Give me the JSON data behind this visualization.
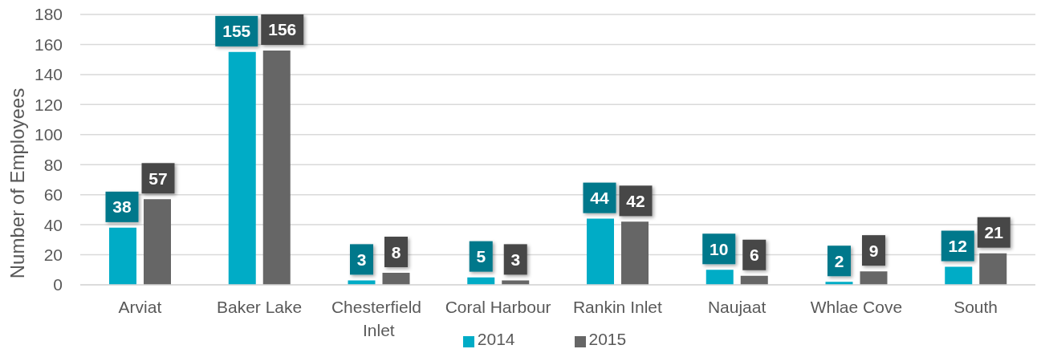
{
  "chart_data": {
    "type": "bar",
    "ylabel": "Number of Employees",
    "categories": [
      "Arviat",
      "Baker Lake",
      "Chesterfield Inlet",
      "Coral Harbour",
      "Rankin Inlet",
      "Naujaat",
      "Whlae Cove",
      "South"
    ],
    "series": [
      {
        "name": "2014",
        "color": "#00acc6",
        "values": [
          38,
          155,
          3,
          5,
          44,
          10,
          2,
          12
        ]
      },
      {
        "name": "2015",
        "color": "#666666",
        "values": [
          57,
          156,
          8,
          3,
          42,
          6,
          9,
          21
        ]
      }
    ],
    "ylim": [
      0,
      180
    ],
    "yticks": [
      0,
      20,
      40,
      60,
      80,
      100,
      120,
      140,
      160,
      180
    ],
    "grid": "y",
    "legend": "bottom",
    "data_labels": true
  }
}
